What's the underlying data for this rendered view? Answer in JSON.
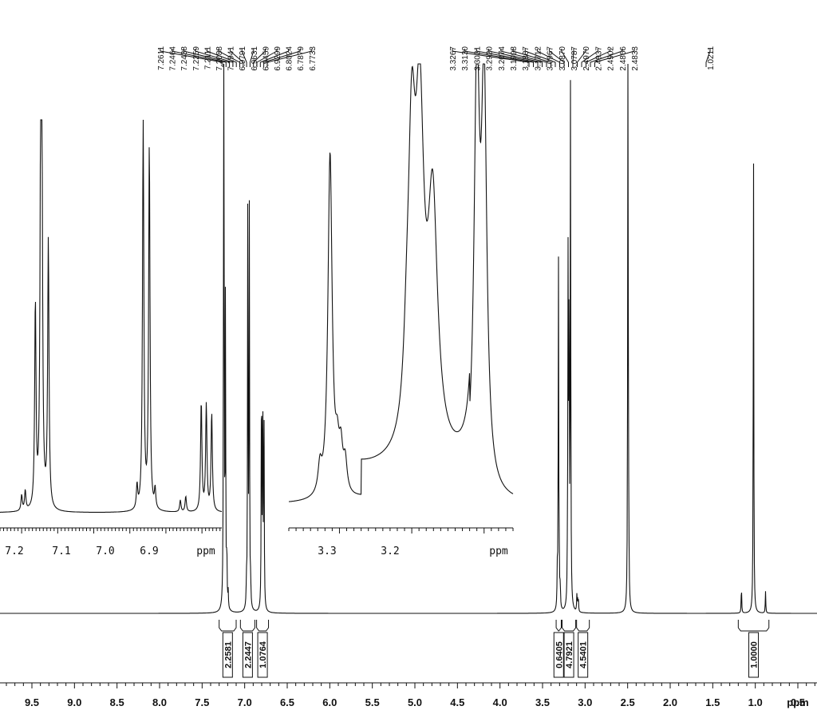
{
  "chart_data": {
    "type": "line",
    "title": "",
    "main": {
      "x_unit": "ppm",
      "xlim": [
        9.8,
        -0.15
      ],
      "ticks": [
        9.5,
        9.0,
        8.5,
        8.0,
        7.5,
        7.0,
        6.5,
        6.0,
        5.5,
        5.0,
        4.5,
        4.0,
        3.5,
        3.0,
        2.5,
        2.0,
        1.5,
        1.0,
        0.5
      ],
      "tick_labels": [
        "9.5",
        "9.0",
        "8.5",
        "8.0",
        "7.5",
        "7.0",
        "6.5",
        "6.0",
        "5.5",
        "5.0",
        "4.5",
        "4.0",
        "3.5",
        "3.0",
        "2.5",
        "2.0",
        "1.5",
        "1.0",
        "0.5"
      ],
      "peaks": [
        {
          "ppm": 7.261,
          "height": 0.0
        },
        {
          "ppm": 7.2464,
          "height": 0.72
        },
        {
          "ppm": 7.2438,
          "height": 0.68
        },
        {
          "ppm": 7.2259,
          "height": 0.56
        },
        {
          "ppm": 7.2111,
          "height": 0.05
        },
        {
          "ppm": 7.2088,
          "height": 0.05
        },
        {
          "ppm": 7.1941,
          "height": 0.03
        },
        {
          "ppm": 6.9791,
          "height": 0.04
        },
        {
          "ppm": 6.9631,
          "height": 0.77
        },
        {
          "ppm": 6.9459,
          "height": 0.74
        },
        {
          "ppm": 6.9299,
          "height": 0.04
        },
        {
          "ppm": 6.8024,
          "height": 0.47
        },
        {
          "ppm": 6.7879,
          "height": 0.42
        },
        {
          "ppm": 6.7733,
          "height": 0.38
        },
        {
          "ppm": 3.3267,
          "height": 0.06
        },
        {
          "ppm": 3.313,
          "height": 0.65
        },
        {
          "ppm": 3.3031,
          "height": 0.05
        },
        {
          "ppm": 3.292,
          "height": 0.04
        },
        {
          "ppm": 3.2074,
          "height": 0.05
        },
        {
          "ppm": 3.1998,
          "height": 0.61
        },
        {
          "ppm": 3.1887,
          "height": 0.6
        },
        {
          "ppm": 3.1712,
          "height": 0.97
        },
        {
          "ppm": 3.0967,
          "height": 0.03
        },
        {
          "ppm": 3.087,
          "height": 0.02
        },
        {
          "ppm": 3.0787,
          "height": 0.02
        },
        {
          "ppm": 2.497,
          "height": 0.9
        },
        {
          "ppm": 2.4937,
          "height": 0.2
        },
        {
          "ppm": 2.4902,
          "height": 0.08
        },
        {
          "ppm": 2.4866,
          "height": 0.04
        },
        {
          "ppm": 2.4833,
          "height": 0.02
        },
        {
          "ppm": 1.163,
          "height": 0.05
        },
        {
          "ppm": 1.0211,
          "height": 0.86
        },
        {
          "ppm": 0.88,
          "height": 0.04
        }
      ],
      "peak_labels_group1": [
        "7.2611",
        "7.2464",
        "7.2438",
        "7.2259",
        "7.2111",
        "7.2088",
        "7.1941",
        "6.9791",
        "6.9631",
        "6.9459",
        "6.9299",
        "6.8024",
        "6.7879",
        "6.7733"
      ],
      "peak_labels_group2": [
        "3.3267",
        "3.3130",
        "3.3031",
        "3.2920",
        "3.2074",
        "3.1998",
        "3.1887",
        "3.1712",
        "3.0967",
        "3.0870",
        "3.0787",
        "2.4970",
        "2.4937",
        "2.4902",
        "2.4866",
        "2.4833"
      ],
      "peak_labels_group3": [
        "1.0211"
      ],
      "integrals": [
        {
          "from": 7.3,
          "to": 7.1,
          "value": "2.2581"
        },
        {
          "from": 7.05,
          "to": 6.88,
          "value": "2.2447"
        },
        {
          "from": 6.86,
          "to": 6.72,
          "value": "1.0764"
        },
        {
          "from": 3.34,
          "to": 3.28,
          "value": "0.6405"
        },
        {
          "from": 3.27,
          "to": 3.11,
          "value": "4.7921"
        },
        {
          "from": 3.1,
          "to": 2.95,
          "value": "4.5401"
        },
        {
          "from": 1.2,
          "to": 0.84,
          "value": "1.0000"
        }
      ]
    },
    "inset_aromatic": {
      "x_unit": "ppm",
      "xlim": [
        7.34,
        6.73
      ],
      "tick_labels": [
        "7.2",
        "7.1",
        "7.0",
        "6.9",
        "ppm"
      ]
    },
    "inset_aliphatic": {
      "x_unit": "ppm",
      "xlim": [
        3.37,
        3.06
      ],
      "tick_labels": [
        "3.3",
        "3.2",
        "ppm"
      ]
    }
  }
}
